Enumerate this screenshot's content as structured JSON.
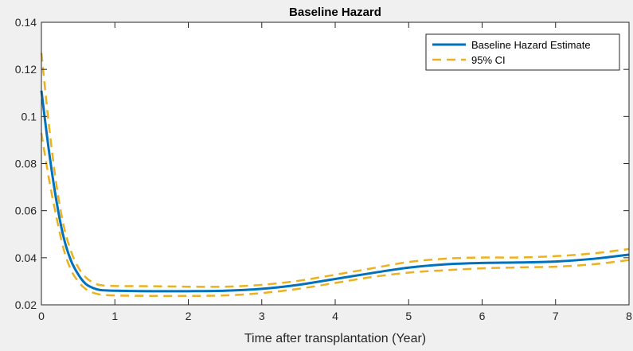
{
  "chart_data": {
    "type": "line",
    "title": "Baseline Hazard",
    "xlabel": "Time after transplantation (Year)",
    "ylabel": "",
    "xlim": [
      0,
      8
    ],
    "ylim": [
      0.02,
      0.14
    ],
    "xticks": [
      "0",
      "1",
      "2",
      "3",
      "4",
      "5",
      "6",
      "7",
      "8"
    ],
    "yticks": [
      "0.02",
      "0.04",
      "0.06",
      "0.08",
      "0.1",
      "0.12",
      "0.14"
    ],
    "grid": false,
    "legend_position": "top-right",
    "series": [
      {
        "name": "Baseline Hazard Estimate",
        "color": "#0072bd",
        "style": "solid",
        "x": [
          0,
          0.1,
          0.2,
          0.3,
          0.4,
          0.5,
          0.6,
          0.7,
          0.8,
          1.0,
          1.5,
          2.0,
          2.5,
          3.0,
          3.5,
          4.0,
          4.5,
          5.0,
          5.5,
          6.0,
          6.5,
          7.0,
          7.5,
          8.0
        ],
        "y": [
          0.111,
          0.086,
          0.065,
          0.049,
          0.039,
          0.033,
          0.029,
          0.0272,
          0.0263,
          0.026,
          0.0258,
          0.0258,
          0.026,
          0.0268,
          0.0285,
          0.031,
          0.0335,
          0.0358,
          0.0372,
          0.0378,
          0.038,
          0.0384,
          0.0395,
          0.0413
        ]
      },
      {
        "name": "95% CI",
        "color": "#edb120",
        "style": "dashed",
        "x": [
          0,
          0.1,
          0.2,
          0.3,
          0.4,
          0.5,
          0.6,
          0.7,
          0.8,
          1.0,
          1.5,
          2.0,
          2.5,
          3.0,
          3.5,
          4.0,
          4.5,
          5.0,
          5.5,
          6.0,
          6.5,
          7.0,
          7.5,
          8.0
        ],
        "y": [
          0.127,
          0.097,
          0.072,
          0.054,
          0.043,
          0.036,
          0.0318,
          0.0295,
          0.0284,
          0.028,
          0.0279,
          0.0277,
          0.0277,
          0.0285,
          0.0302,
          0.0328,
          0.0355,
          0.0382,
          0.0396,
          0.0401,
          0.0401,
          0.0407,
          0.0418,
          0.0437
        ]
      },
      {
        "name": "",
        "color": "#edb120",
        "style": "dashed",
        "x": [
          0,
          0.1,
          0.2,
          0.3,
          0.4,
          0.5,
          0.6,
          0.7,
          0.8,
          1.0,
          1.5,
          2.0,
          2.5,
          3.0,
          3.5,
          4.0,
          4.5,
          5.0,
          5.5,
          6.0,
          6.5,
          7.0,
          7.5,
          8.0
        ],
        "y": [
          0.093,
          0.074,
          0.058,
          0.044,
          0.035,
          0.03,
          0.0268,
          0.0252,
          0.0244,
          0.024,
          0.0238,
          0.0238,
          0.024,
          0.025,
          0.0268,
          0.0293,
          0.0318,
          0.0337,
          0.0347,
          0.0355,
          0.0359,
          0.0362,
          0.0372,
          0.039
        ]
      }
    ]
  }
}
